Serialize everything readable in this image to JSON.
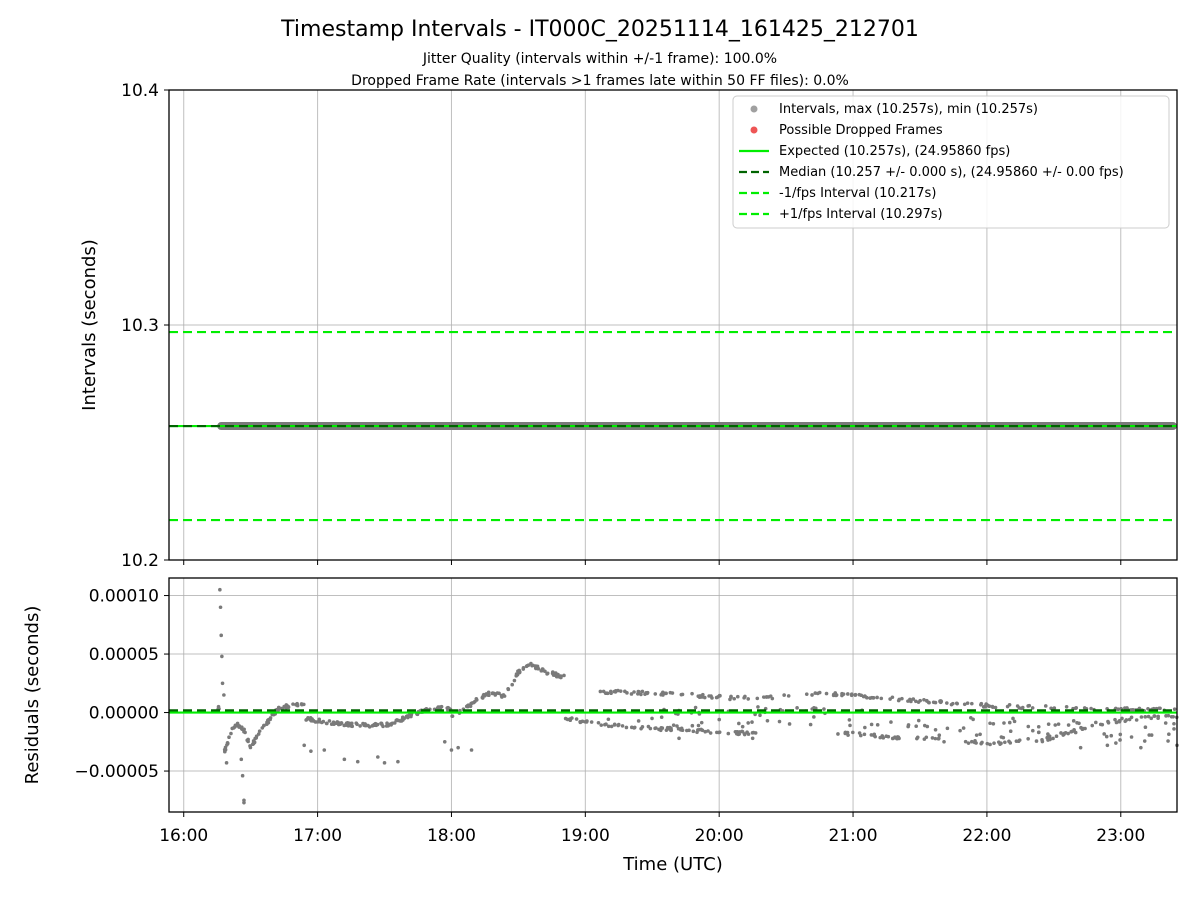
{
  "chart_data": [
    {
      "type": "scatter",
      "title": "Timestamp Intervals - IT000C_20251114_161425_212701",
      "subtitle_lines": [
        "Jitter Quality (intervals within +/-1 frame): 100.0%",
        "Dropped Frame Rate (intervals >1 frames late within 50 FF files): 0.0%"
      ],
      "ylabel": "Intervals (seconds)",
      "ylim": [
        10.2,
        10.4
      ],
      "yticks": [
        10.2,
        10.3,
        10.4
      ],
      "ytick_labels": [
        "10.2",
        "10.3",
        "10.4"
      ],
      "xlim_hours": [
        15.89,
        23.42
      ],
      "grid": true,
      "legend_position": "top-right",
      "legend": [
        {
          "kind": "dot",
          "color": "#a0a0a0",
          "label": "Intervals, max (10.257s), min (10.257s)"
        },
        {
          "kind": "dot",
          "color": "#ee5555",
          "label": "Possible Dropped Frames"
        },
        {
          "kind": "solid",
          "color": "#00ee00",
          "label": "Expected (10.257s), (24.95860 fps)"
        },
        {
          "kind": "dashed",
          "color": "#006400",
          "label": "Median (10.257 +/- 0.000 s), (24.95860 +/- 0.00 fps)"
        },
        {
          "kind": "dashed",
          "color": "#00ee00",
          "label": "-1/fps Interval (10.217s)"
        },
        {
          "kind": "dashed",
          "color": "#00ee00",
          "label": "+1/fps Interval (10.297s)"
        }
      ],
      "series": [
        {
          "name": "Intervals",
          "y_value": 10.257,
          "x_start_hours": 16.25,
          "x_end_hours": 23.42,
          "color": "#7a7a7a"
        },
        {
          "name": "Expected",
          "value": 10.257,
          "color": "#00ee00",
          "style": "solid"
        },
        {
          "name": "Median",
          "value": 10.257,
          "color": "#006400",
          "style": "dashed"
        },
        {
          "name": "-1/fps Interval",
          "value": 10.217,
          "color": "#00ee00",
          "style": "dashed"
        },
        {
          "name": "+1/fps Interval",
          "value": 10.297,
          "color": "#00ee00",
          "style": "dashed"
        }
      ]
    },
    {
      "type": "scatter",
      "xlabel": "Time (UTC)",
      "ylabel": "Residuals (seconds)",
      "ylim": [
        -8.5e-05,
        0.000115
      ],
      "yticks": [
        -5e-05,
        0.0,
        5e-05,
        0.0001
      ],
      "ytick_labels": [
        "−0.00005",
        "0.00000",
        "0.00005",
        "0.00010"
      ],
      "xlim_hours": [
        15.89,
        23.42
      ],
      "xticks_hours": [
        16,
        17,
        18,
        19,
        20,
        21,
        22,
        23
      ],
      "xtick_labels": [
        "16:00",
        "17:00",
        "18:00",
        "19:00",
        "20:00",
        "21:00",
        "22:00",
        "23:00"
      ],
      "grid": true,
      "point_color": "#7a7a7a",
      "reference_lines": [
        {
          "name": "Expected",
          "value": 0.0,
          "color": "#00ee00",
          "style": "solid"
        },
        {
          "name": "Median",
          "value": 1e-06,
          "color": "#006400",
          "style": "dashed"
        }
      ],
      "trend_bands": [
        {
          "x": [
            16.25,
            16.28,
            16.3,
            16.33,
            16.36,
            16.4,
            16.45,
            16.5,
            16.55,
            16.6,
            16.65,
            16.7,
            16.8,
            16.9
          ],
          "y": [
            3e-06,
            3e-06,
            -3.5e-05,
            -2.5e-05,
            -1.5e-05,
            -1e-05,
            -1.5e-05,
            -3e-05,
            -2e-05,
            -1.2e-05,
            -5e-06,
            3e-06,
            6e-06,
            7e-06
          ],
          "count": 90
        },
        {
          "x": [
            16.9,
            17.0,
            17.2,
            17.4,
            17.55,
            17.7,
            17.8,
            17.9,
            18.0
          ],
          "y": [
            -5e-06,
            -7e-06,
            -1e-05,
            -1.1e-05,
            -1e-05,
            -2e-06,
            2e-06,
            4e-06,
            3e-06
          ],
          "count": 120
        },
        {
          "x": [
            18.0,
            18.1,
            18.2,
            18.3,
            18.4,
            18.5,
            18.6,
            18.7,
            18.85
          ],
          "y": [
            -3e-06,
            3e-06,
            1.2e-05,
            1.7e-05,
            1.4e-05,
            3.5e-05,
            4.1e-05,
            3.5e-05,
            3e-05
          ],
          "count": 90
        },
        {
          "x": [
            18.85,
            19.0,
            19.3,
            19.6,
            19.9,
            20.3
          ],
          "y": [
            -5e-06,
            -8e-06,
            -1.2e-05,
            -1.4e-05,
            -1.6e-05,
            -1.8e-05
          ],
          "count": 80
        },
        {
          "x": [
            19.1,
            19.4,
            19.7,
            20.0,
            20.3,
            20.6,
            20.75,
            21.0,
            21.3,
            21.6,
            22.0,
            22.5,
            23.0,
            23.42
          ],
          "y": [
            1.8e-05,
            1.7e-05,
            1.6e-05,
            1.3e-05,
            1.2e-05,
            1.5e-05,
            1.6e-05,
            1.5e-05,
            1.2e-05,
            9e-06,
            6e-06,
            4e-06,
            3e-06,
            2e-06
          ],
          "count": 200
        },
        {
          "x": [
            20.85,
            21.2,
            21.6,
            22.0,
            22.4,
            22.8,
            23.1,
            23.42
          ],
          "y": [
            -1.7e-05,
            -2e-05,
            -2.3e-05,
            -2.6e-05,
            -2.4e-05,
            -1e-05,
            -5e-06,
            -3e-06
          ],
          "count": 110
        },
        {
          "x": [
            19.1,
            19.5,
            20.0,
            20.4,
            21.0,
            21.5,
            22.0,
            22.5,
            23.0,
            23.42
          ],
          "y": [
            -2e-06,
            -4e-06,
            -5e-06,
            -3e-06,
            -4e-06,
            -1e-05,
            -1.2e-05,
            -1.5e-05,
            -1.8e-05,
            -1.5e-05
          ],
          "count": 110,
          "spread": 1.8e-05
        }
      ],
      "points": [
        {
          "x": 16.27,
          "y": 0.000105
        },
        {
          "x": 16.275,
          "y": 9e-05
        },
        {
          "x": 16.28,
          "y": 6.6e-05
        },
        {
          "x": 16.285,
          "y": 4.8e-05
        },
        {
          "x": 16.29,
          "y": 2.5e-05
        },
        {
          "x": 16.3,
          "y": 1.5e-05
        },
        {
          "x": 16.26,
          "y": 5e-06
        },
        {
          "x": 16.32,
          "y": -4.3e-05
        },
        {
          "x": 16.45,
          "y": -7.5e-05
        },
        {
          "x": 16.45,
          "y": -7.7e-05
        },
        {
          "x": 16.44,
          "y": -5.4e-05
        },
        {
          "x": 16.43,
          "y": -4e-05
        },
        {
          "x": 16.9,
          "y": -2.8e-05
        },
        {
          "x": 16.95,
          "y": -3.3e-05
        },
        {
          "x": 17.05,
          "y": -3.2e-05
        },
        {
          "x": 17.2,
          "y": -4e-05
        },
        {
          "x": 17.3,
          "y": -4.2e-05
        },
        {
          "x": 17.45,
          "y": -3.8e-05
        },
        {
          "x": 17.5,
          "y": -4.3e-05
        },
        {
          "x": 17.6,
          "y": -4.2e-05
        },
        {
          "x": 17.95,
          "y": -2.5e-05
        },
        {
          "x": 18.0,
          "y": -3.2e-05
        },
        {
          "x": 18.15,
          "y": -3.2e-05
        },
        {
          "x": 18.05,
          "y": -3e-05
        },
        {
          "x": 19.7,
          "y": -2.2e-05
        },
        {
          "x": 20.25,
          "y": -2.2e-05
        },
        {
          "x": 22.7,
          "y": -3e-05
        },
        {
          "x": 22.9,
          "y": -2.8e-05
        },
        {
          "x": 23.15,
          "y": -3e-05
        },
        {
          "x": 23.42,
          "y": -2.8e-05
        }
      ]
    }
  ]
}
